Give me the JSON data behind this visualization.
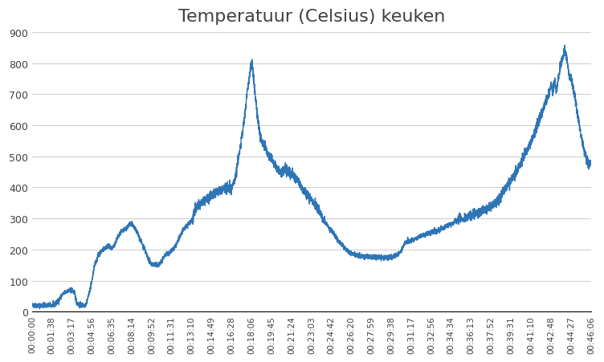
{
  "title": "Temperatuur (Celsius) keuken",
  "title_fontsize": 16,
  "line_color": "#2E75B6",
  "line_width": 1.0,
  "background_color": "#ffffff",
  "plot_bg_color": "#ffffff",
  "ylim": [
    0,
    900
  ],
  "yticks": [
    0,
    100,
    200,
    300,
    400,
    500,
    600,
    700,
    800,
    900
  ],
  "grid_color": "#d0d0d0",
  "xtick_labels": [
    "00:00:00",
    "00:01:38",
    "00:03:17",
    "00:04:56",
    "00:06:35",
    "00:08:14",
    "00:09:52",
    "00:11:31",
    "00:13:10",
    "00:14:49",
    "00:16:28",
    "00:18:06",
    "00:19:45",
    "00:21:24",
    "00:23:03",
    "00:24:42",
    "00:26:20",
    "00:27:59",
    "00:29:38",
    "00:31:17",
    "00:32:56",
    "00:34:34",
    "00:36:13",
    "00:37:52",
    "00:39:31",
    "00:41:10",
    "00:42:48",
    "00:44:27",
    "00:46:06"
  ]
}
